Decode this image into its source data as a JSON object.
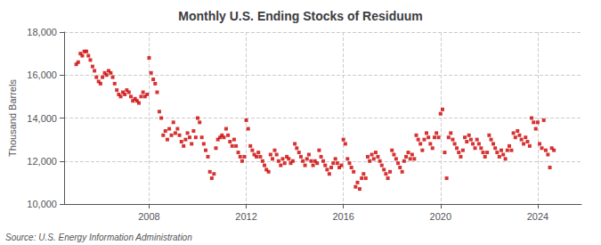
{
  "chart_data": {
    "type": "scatter",
    "title": "Monthly U.S. Ending Stocks of Residuum",
    "ylabel": "Thousand Barrels",
    "annotations": [
      "Source: U.S. Energy Information Administration"
    ],
    "color": "#cc0000",
    "marker": "square",
    "grid": true,
    "xlim": [
      2004.5,
      2025.8
    ],
    "xticks": [
      2008,
      2012,
      2016,
      2020,
      2024
    ],
    "ylim": [
      10000,
      18000
    ],
    "yticks": [
      {
        "value": 10000,
        "label": "10,000"
      },
      {
        "value": 12000,
        "label": "12,000"
      },
      {
        "value": 14000,
        "label": "14,000"
      },
      {
        "value": 16000,
        "label": "16,000"
      },
      {
        "value": 18000,
        "label": "18,000"
      }
    ],
    "x": [
      2005.0,
      2005.08,
      2005.17,
      2005.25,
      2005.33,
      2005.42,
      2005.5,
      2005.58,
      2005.67,
      2005.75,
      2005.83,
      2005.92,
      2006.0,
      2006.08,
      2006.17,
      2006.25,
      2006.33,
      2006.42,
      2006.5,
      2006.58,
      2006.67,
      2006.75,
      2006.83,
      2006.92,
      2007.0,
      2007.08,
      2007.17,
      2007.25,
      2007.33,
      2007.42,
      2007.5,
      2007.58,
      2007.67,
      2007.75,
      2007.83,
      2007.92,
      2008.0,
      2008.08,
      2008.17,
      2008.25,
      2008.33,
      2008.42,
      2008.5,
      2008.58,
      2008.67,
      2008.75,
      2008.83,
      2008.92,
      2009.0,
      2009.08,
      2009.17,
      2009.25,
      2009.33,
      2009.42,
      2009.5,
      2009.58,
      2009.67,
      2009.75,
      2009.83,
      2009.92,
      2010.0,
      2010.08,
      2010.17,
      2010.25,
      2010.33,
      2010.42,
      2010.5,
      2010.58,
      2010.67,
      2010.75,
      2010.83,
      2010.92,
      2011.0,
      2011.08,
      2011.17,
      2011.25,
      2011.33,
      2011.42,
      2011.5,
      2011.58,
      2011.67,
      2011.75,
      2011.83,
      2011.92,
      2012.0,
      2012.08,
      2012.17,
      2012.25,
      2012.33,
      2012.42,
      2012.5,
      2012.58,
      2012.67,
      2012.75,
      2012.83,
      2012.92,
      2013.0,
      2013.08,
      2013.17,
      2013.25,
      2013.33,
      2013.42,
      2013.5,
      2013.58,
      2013.67,
      2013.75,
      2013.83,
      2013.92,
      2014.0,
      2014.08,
      2014.17,
      2014.25,
      2014.33,
      2014.42,
      2014.5,
      2014.58,
      2014.67,
      2014.75,
      2014.83,
      2014.92,
      2015.0,
      2015.08,
      2015.17,
      2015.25,
      2015.33,
      2015.42,
      2015.5,
      2015.58,
      2015.67,
      2015.75,
      2015.83,
      2015.92,
      2016.0,
      2016.08,
      2016.17,
      2016.25,
      2016.33,
      2016.42,
      2016.5,
      2016.58,
      2016.67,
      2016.75,
      2016.83,
      2016.92,
      2017.0,
      2017.08,
      2017.17,
      2017.25,
      2017.33,
      2017.42,
      2017.5,
      2017.58,
      2017.67,
      2017.75,
      2017.83,
      2017.92,
      2018.0,
      2018.08,
      2018.17,
      2018.25,
      2018.33,
      2018.42,
      2018.5,
      2018.58,
      2018.67,
      2018.75,
      2018.83,
      2018.92,
      2019.0,
      2019.08,
      2019.17,
      2019.25,
      2019.33,
      2019.42,
      2019.5,
      2019.58,
      2019.67,
      2019.75,
      2019.83,
      2019.92,
      2020.0,
      2020.08,
      2020.17,
      2020.25,
      2020.33,
      2020.42,
      2020.5,
      2020.58,
      2020.67,
      2020.75,
      2020.83,
      2020.92,
      2021.0,
      2021.08,
      2021.17,
      2021.25,
      2021.33,
      2021.42,
      2021.5,
      2021.58,
      2021.67,
      2021.75,
      2021.83,
      2021.92,
      2022.0,
      2022.08,
      2022.17,
      2022.25,
      2022.33,
      2022.42,
      2022.5,
      2022.58,
      2022.67,
      2022.75,
      2022.83,
      2022.92,
      2023.0,
      2023.08,
      2023.17,
      2023.25,
      2023.33,
      2023.42,
      2023.5,
      2023.58,
      2023.67,
      2023.75,
      2023.83,
      2023.92,
      2024.0,
      2024.08,
      2024.17,
      2024.25,
      2024.33,
      2024.42,
      2024.5,
      2024.58,
      2024.67
    ],
    "values": [
      16500,
      16600,
      17000,
      16900,
      17100,
      17100,
      16900,
      16700,
      16400,
      16200,
      15900,
      15700,
      15600,
      15900,
      16100,
      16000,
      16200,
      16100,
      15900,
      15600,
      15300,
      15100,
      15000,
      15200,
      15100,
      15300,
      15200,
      15000,
      14800,
      14900,
      14800,
      14700,
      15000,
      15200,
      15000,
      15100,
      16800,
      16100,
      15800,
      15600,
      15200,
      14300,
      14000,
      13200,
      13400,
      13000,
      13500,
      13200,
      13800,
      13300,
      13500,
      13200,
      12900,
      12700,
      13000,
      13300,
      13100,
      12800,
      13400,
      13100,
      14000,
      13800,
      13100,
      12800,
      12500,
      12200,
      11500,
      11200,
      11400,
      12600,
      13000,
      13100,
      13200,
      13100,
      13500,
      13200,
      12900,
      12700,
      13000,
      12700,
      12400,
      12200,
      12000,
      12200,
      13900,
      13500,
      12700,
      12500,
      12300,
      12200,
      12400,
      12200,
      12000,
      11800,
      11600,
      11500,
      12300,
      12100,
      12500,
      12300,
      12000,
      11800,
      12100,
      11900,
      12200,
      12100,
      11900,
      12000,
      12800,
      12600,
      12400,
      12200,
      12000,
      11800,
      12100,
      12300,
      12000,
      11800,
      12000,
      11900,
      12500,
      12200,
      12000,
      11800,
      11600,
      11400,
      11700,
      11900,
      12100,
      11900,
      11700,
      11800,
      13000,
      12800,
      12100,
      11900,
      11700,
      11500,
      10800,
      11000,
      10700,
      11200,
      11400,
      11200,
      12200,
      12000,
      12300,
      12100,
      12400,
      12200,
      12000,
      11800,
      11600,
      11400,
      11200,
      11500,
      12500,
      12300,
      12100,
      11900,
      11700,
      11500,
      12000,
      12200,
      12400,
      12100,
      12300,
      12100,
      13200,
      13000,
      12800,
      12500,
      13000,
      13300,
      13100,
      12800,
      12600,
      13100,
      13300,
      13100,
      14200,
      14400,
      12400,
      11200,
      13100,
      13300,
      13000,
      12800,
      12600,
      12400,
      12200,
      12500,
      13100,
      12900,
      13200,
      13000,
      12800,
      12600,
      13000,
      12800,
      12600,
      12400,
      12200,
      12400,
      13200,
      13000,
      12800,
      12600,
      12400,
      12200,
      12500,
      12300,
      12100,
      12500,
      12700,
      12500,
      13300,
      13100,
      13400,
      13200,
      13000,
      12800,
      13100,
      12900,
      12700,
      14000,
      13800,
      13500,
      13800,
      12800,
      12600,
      13900,
      12500,
      12300,
      11700,
      12600,
      12500
    ]
  }
}
